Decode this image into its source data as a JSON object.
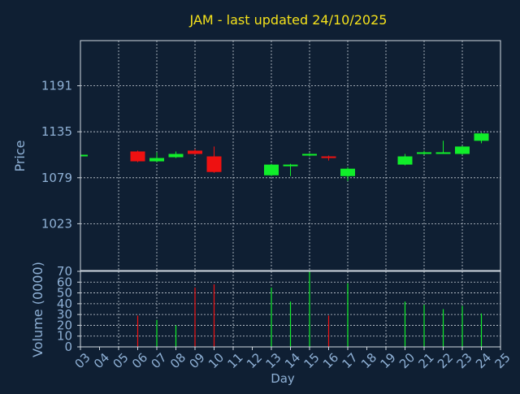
{
  "chart_data": {
    "type": "candlestick",
    "title": "JAM - last updated 24/10/2025",
    "xlabel": "Day",
    "grid": true,
    "colors": {
      "background": "#0f1f33",
      "title": "#f5e21b",
      "axis_text": "#8fb1d6",
      "axis_line": "#d0d8e0",
      "grid": "#c8cfd8",
      "up": "#11ee2a",
      "down": "#ee1111"
    },
    "x_ticks": [
      "03",
      "04",
      "05",
      "06",
      "07",
      "08",
      "09",
      "10",
      "11",
      "12",
      "13",
      "14",
      "15",
      "16",
      "17",
      "18",
      "19",
      "20",
      "21",
      "22",
      "23",
      "24",
      "25"
    ],
    "price_panel": {
      "ylabel": "Price",
      "ylim": [
        966,
        1246
      ],
      "yticks": [
        1023,
        1079,
        1135,
        1191
      ],
      "candles": [
        {
          "day": 3,
          "open": 1107,
          "high": 1108,
          "low": 1106,
          "close": 1107
        },
        {
          "day": 6,
          "open": 1111,
          "high": 1112,
          "low": 1098,
          "close": 1099
        },
        {
          "day": 7,
          "open": 1099,
          "high": 1110,
          "low": 1098,
          "close": 1103
        },
        {
          "day": 8,
          "open": 1104,
          "high": 1111,
          "low": 1103,
          "close": 1108
        },
        {
          "day": 9,
          "open": 1112,
          "high": 1114,
          "low": 1107,
          "close": 1108
        },
        {
          "day": 10,
          "open": 1105,
          "high": 1117,
          "low": 1085,
          "close": 1086
        },
        {
          "day": 13,
          "open": 1082,
          "high": 1096,
          "low": 1081,
          "close": 1095
        },
        {
          "day": 14,
          "open": 1093,
          "high": 1096,
          "low": 1081,
          "close": 1095
        },
        {
          "day": 15,
          "open": 1106,
          "high": 1109,
          "low": 1105,
          "close": 1108
        },
        {
          "day": 16,
          "open": 1105,
          "high": 1106,
          "low": 1100,
          "close": 1103
        },
        {
          "day": 17,
          "open": 1081,
          "high": 1092,
          "low": 1075,
          "close": 1090
        },
        {
          "day": 20,
          "open": 1095,
          "high": 1108,
          "low": 1094,
          "close": 1105
        },
        {
          "day": 21,
          "open": 1109,
          "high": 1112,
          "low": 1107,
          "close": 1110
        },
        {
          "day": 22,
          "open": 1109,
          "high": 1124,
          "low": 1108,
          "close": 1110
        },
        {
          "day": 23,
          "open": 1108,
          "high": 1118,
          "low": 1107,
          "close": 1117
        },
        {
          "day": 24,
          "open": 1124,
          "high": 1134,
          "low": 1121,
          "close": 1133
        }
      ]
    },
    "volume_panel": {
      "ylabel": "Volume (0000)",
      "ylim": [
        0,
        70
      ],
      "yticks": [
        0,
        10,
        20,
        30,
        40,
        50,
        60,
        70
      ],
      "bars": [
        {
          "day": 6,
          "value": 29,
          "direction": "down"
        },
        {
          "day": 7,
          "value": 25,
          "direction": "up"
        },
        {
          "day": 8,
          "value": 20,
          "direction": "up"
        },
        {
          "day": 9,
          "value": 55,
          "direction": "down"
        },
        {
          "day": 10,
          "value": 58,
          "direction": "down"
        },
        {
          "day": 13,
          "value": 55,
          "direction": "up"
        },
        {
          "day": 14,
          "value": 42,
          "direction": "up"
        },
        {
          "day": 15,
          "value": 70,
          "direction": "up"
        },
        {
          "day": 16,
          "value": 29,
          "direction": "down"
        },
        {
          "day": 17,
          "value": 59,
          "direction": "up"
        },
        {
          "day": 20,
          "value": 42,
          "direction": "up"
        },
        {
          "day": 21,
          "value": 39,
          "direction": "up"
        },
        {
          "day": 22,
          "value": 35,
          "direction": "up"
        },
        {
          "day": 23,
          "value": 38,
          "direction": "up"
        },
        {
          "day": 24,
          "value": 31,
          "direction": "up"
        }
      ]
    }
  }
}
